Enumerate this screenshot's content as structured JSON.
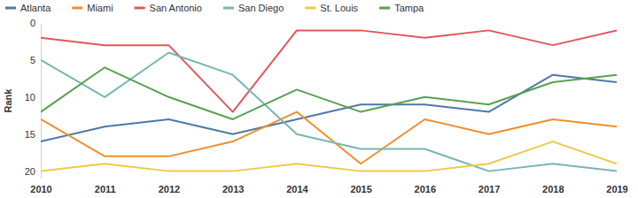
{
  "chart_data": {
    "type": "line",
    "y_label": "Rank",
    "categories": [
      "2010",
      "2011",
      "2012",
      "2013",
      "2014",
      "2015",
      "2016",
      "2017",
      "2018",
      "2019"
    ],
    "series": [
      {
        "name": "Atlanta",
        "color": "#4e79a7",
        "values": [
          16,
          14,
          13,
          15,
          13,
          11,
          11,
          12,
          7,
          8
        ]
      },
      {
        "name": "Miami",
        "color": "#f28e2b",
        "values": [
          13,
          18,
          18,
          16,
          12,
          19,
          13,
          15,
          13,
          14
        ]
      },
      {
        "name": "San Antonio",
        "color": "#e15759",
        "values": [
          2,
          3,
          3,
          12,
          1,
          1,
          2,
          1,
          3,
          1
        ]
      },
      {
        "name": "San Diego",
        "color": "#76b7b2",
        "values": [
          5,
          10,
          4,
          7,
          15,
          17,
          17,
          20,
          19,
          20
        ]
      },
      {
        "name": "St. Louis",
        "color": "#edc948",
        "values": [
          20,
          19,
          20,
          20,
          19,
          20,
          20,
          19,
          16,
          19
        ]
      },
      {
        "name": "Tampa",
        "color": "#59a14f",
        "values": [
          12,
          6,
          10,
          13,
          9,
          12,
          10,
          11,
          8,
          7
        ]
      }
    ],
    "ylim": [
      0,
      21
    ],
    "yticks": [
      0,
      5,
      10,
      15,
      20
    ],
    "grid": false,
    "legend": "top-left"
  }
}
